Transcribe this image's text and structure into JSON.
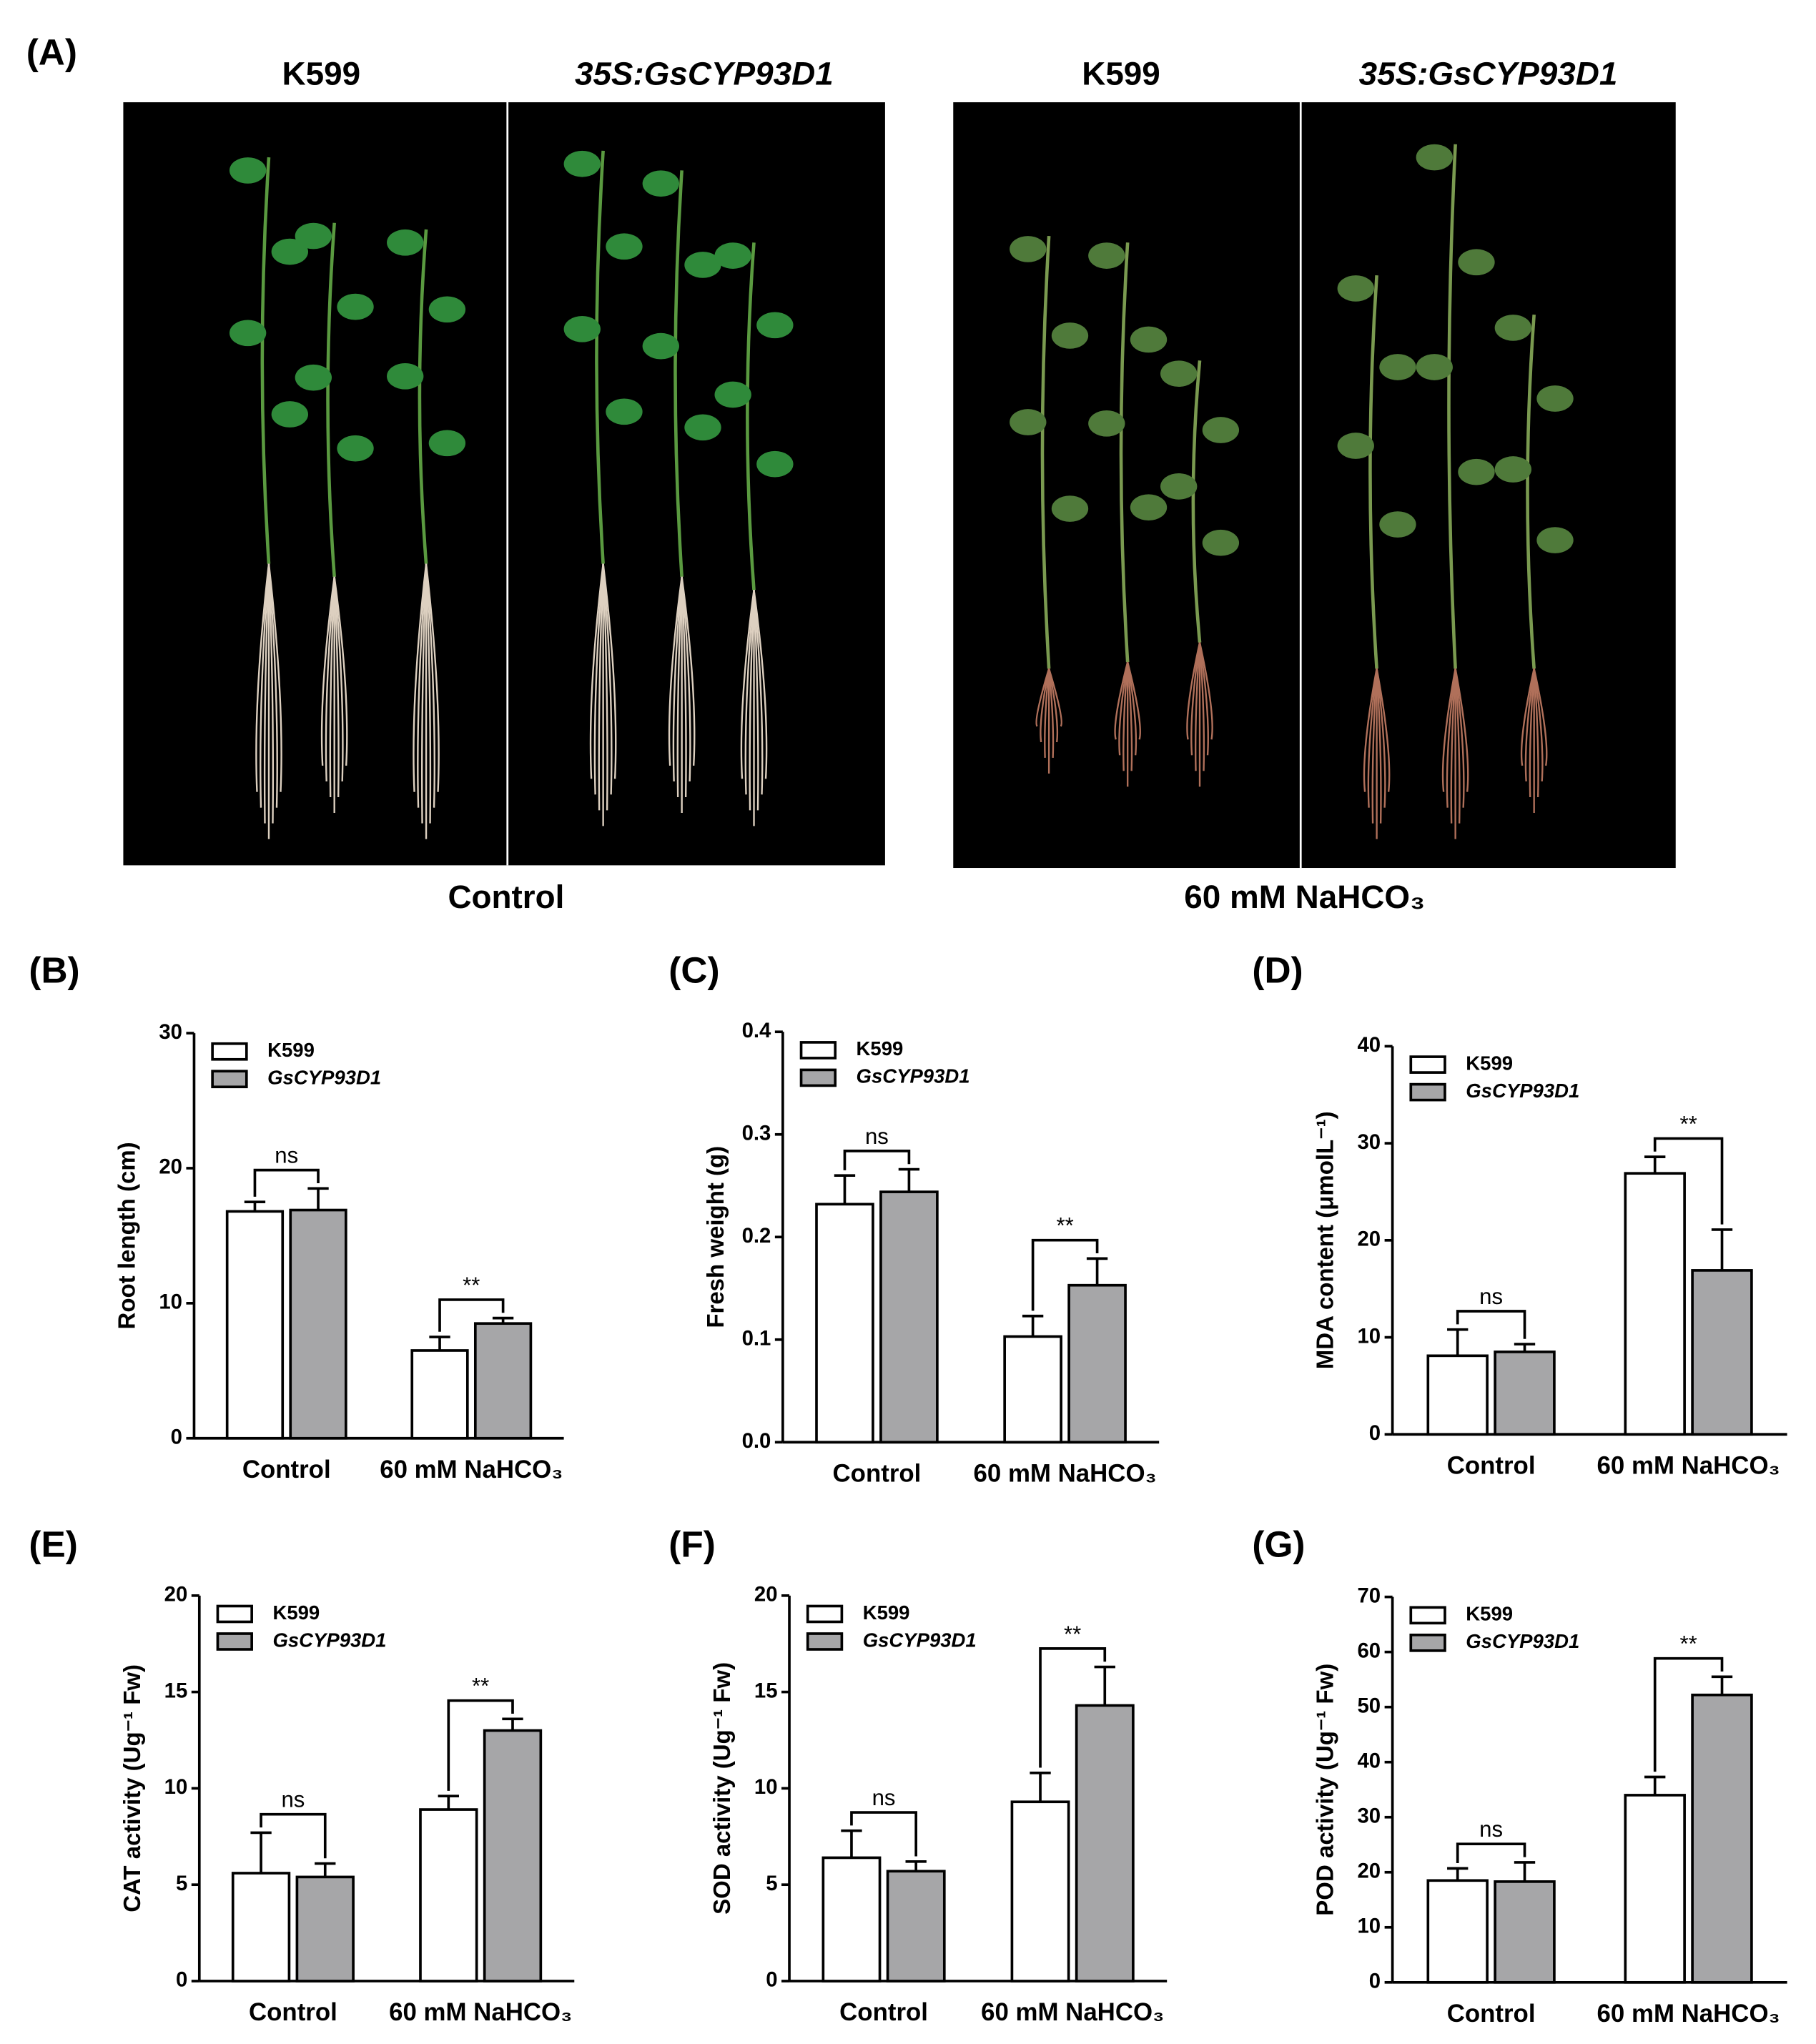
{
  "photo_panel": {
    "label": "(A)",
    "genotype_labels": [
      "K599",
      "35S:GsCYP93D1",
      "K599",
      "35S:GsCYP93D1"
    ],
    "conditions": [
      "Control",
      "60 mM NaHCO₃"
    ]
  },
  "chart_data": [
    {
      "type": "bar",
      "panel_label": "(B)",
      "ylabel": "Root length (cm)",
      "categories": [
        "Control",
        "60 mM NaHCO₃"
      ],
      "series": [
        {
          "name": "K599",
          "color": "#ffffff",
          "values": [
            16.8,
            6.5
          ],
          "errors": [
            0.7,
            1.0
          ]
        },
        {
          "name": "GsCYP93D1",
          "color": "#a6a6a8",
          "values": [
            16.9,
            8.5
          ],
          "errors": [
            1.6,
            0.4
          ]
        }
      ],
      "ylim": [
        0,
        30
      ],
      "yticks": [
        0,
        10,
        20,
        30
      ],
      "annotations": [
        "ns",
        "**"
      ],
      "legend": "upper left"
    },
    {
      "type": "bar",
      "panel_label": "(C)",
      "ylabel": "Fresh weight (g)",
      "categories": [
        "Control",
        "60 mM NaHCO₃"
      ],
      "series": [
        {
          "name": "K599",
          "color": "#ffffff",
          "values": [
            0.232,
            0.103
          ],
          "errors": [
            0.028,
            0.02
          ]
        },
        {
          "name": "GsCYP93D1",
          "color": "#a6a6a8",
          "values": [
            0.244,
            0.153
          ],
          "errors": [
            0.022,
            0.026
          ]
        }
      ],
      "ylim": [
        0,
        0.4
      ],
      "yticks": [
        {
          "value": 0,
          "label": "0.0"
        },
        0.1,
        0.2,
        0.3,
        0.4
      ],
      "annotations": [
        "ns",
        "**"
      ],
      "legend": "upper left"
    },
    {
      "type": "bar",
      "panel_label": "(D)",
      "ylabel": "MDA content (μmolL⁻¹)",
      "categories": [
        "Control",
        "60 mM NaHCO₃"
      ],
      "series": [
        {
          "name": "K599",
          "color": "#ffffff",
          "values": [
            8.1,
            26.9
          ],
          "errors": [
            2.7,
            1.7
          ]
        },
        {
          "name": "GsCYP93D1",
          "color": "#a6a6a8",
          "values": [
            8.5,
            16.9
          ],
          "errors": [
            0.8,
            4.2
          ]
        }
      ],
      "ylim": [
        0,
        40
      ],
      "yticks": [
        0,
        10,
        20,
        30,
        40
      ],
      "annotations": [
        "ns",
        "**"
      ],
      "legend": "upper left"
    },
    {
      "type": "bar",
      "panel_label": "(E)",
      "ylabel": "CAT activity (Ug⁻¹ Fw)",
      "categories": [
        "Control",
        "60 mM NaHCO₃"
      ],
      "series": [
        {
          "name": "K599",
          "color": "#ffffff",
          "values": [
            5.6,
            8.9
          ],
          "errors": [
            2.1,
            0.7
          ]
        },
        {
          "name": "GsCYP93D1",
          "color": "#a6a6a8",
          "values": [
            5.4,
            13.0
          ],
          "errors": [
            0.7,
            0.6
          ]
        }
      ],
      "ylim": [
        0,
        20
      ],
      "yticks": [
        0,
        5,
        10,
        15,
        20
      ],
      "annotations": [
        "ns",
        "**"
      ],
      "legend": "upper left"
    },
    {
      "type": "bar",
      "panel_label": "(F)",
      "ylabel": "SOD activity (Ug⁻¹ Fw)",
      "categories": [
        "Control",
        "60 mM NaHCO₃"
      ],
      "series": [
        {
          "name": "K599",
          "color": "#ffffff",
          "values": [
            6.4,
            9.3
          ],
          "errors": [
            1.4,
            1.5
          ]
        },
        {
          "name": "GsCYP93D1",
          "color": "#a6a6a8",
          "values": [
            5.7,
            14.3
          ],
          "errors": [
            0.5,
            2.0
          ]
        }
      ],
      "ylim": [
        0,
        20
      ],
      "yticks": [
        0,
        5,
        10,
        15,
        20
      ],
      "annotations": [
        "ns",
        "**"
      ],
      "legend": "upper left"
    },
    {
      "type": "bar",
      "panel_label": "(G)",
      "ylabel": "POD activity (Ug⁻¹ Fw)",
      "categories": [
        "Control",
        "60 mM NaHCO₃"
      ],
      "series": [
        {
          "name": "K599",
          "color": "#ffffff",
          "values": [
            18.5,
            34.0
          ],
          "errors": [
            2.2,
            3.3
          ]
        },
        {
          "name": "GsCYP93D1",
          "color": "#a6a6a8",
          "values": [
            18.3,
            52.2
          ],
          "errors": [
            3.5,
            3.3
          ]
        }
      ],
      "ylim": [
        0,
        70
      ],
      "yticks": [
        0,
        10,
        20,
        30,
        40,
        50,
        60,
        70
      ],
      "annotations": [
        "ns",
        "**"
      ],
      "legend": "upper left"
    }
  ]
}
